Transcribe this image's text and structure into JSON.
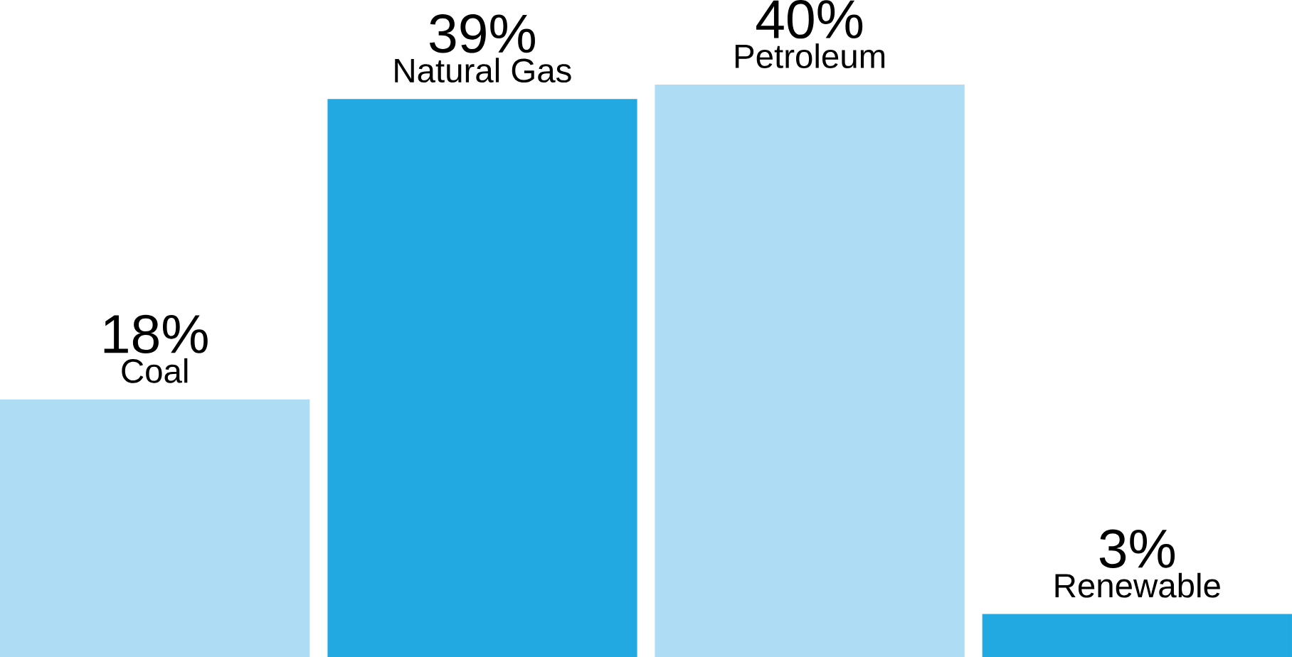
{
  "chart_data": {
    "type": "bar",
    "categories": [
      "Coal",
      "Natural Gas",
      "Petroleum",
      "Renewable"
    ],
    "values": [
      18,
      39,
      40,
      3
    ],
    "value_labels": [
      "18%",
      "39%",
      "40%",
      "3%"
    ],
    "colors": [
      "#aedcf4",
      "#22a9e1",
      "#aedcf4",
      "#22a9e1"
    ]
  }
}
